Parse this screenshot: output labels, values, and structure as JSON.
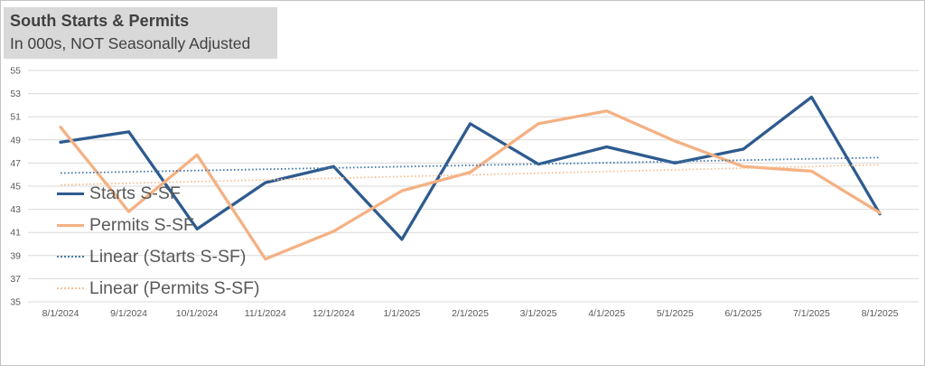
{
  "header": {
    "title": "South Starts & Permits",
    "subtitle": "In 000s, NOT Seasonally Adjusted"
  },
  "chart_data": {
    "type": "line",
    "title": "South Starts & Permits",
    "subtitle": "In 000s, NOT Seasonally Adjusted",
    "x": [
      "8/1/2024",
      "9/1/2024",
      "10/1/2024",
      "11/1/2024",
      "12/1/2024",
      "1/1/2025",
      "2/1/2025",
      "3/1/2025",
      "4/1/2025",
      "5/1/2025",
      "6/1/2025",
      "7/1/2025",
      "8/1/2025"
    ],
    "series": [
      {
        "name": "Starts S-SF",
        "style": "solid",
        "color": "#2e5b8f",
        "values": [
          48.8,
          49.7,
          41.3,
          45.3,
          46.7,
          40.4,
          50.4,
          46.9,
          48.4,
          47.0,
          48.2,
          52.7,
          42.6
        ]
      },
      {
        "name": "Permits S-SF",
        "style": "solid",
        "color": "#f4b183",
        "values": [
          50.1,
          42.8,
          47.7,
          38.7,
          41.1,
          44.6,
          46.2,
          50.4,
          51.5,
          48.9,
          46.7,
          46.3,
          42.7
        ]
      },
      {
        "name": "Linear (Starts S-SF)",
        "style": "dotted",
        "color": "#4678ac",
        "trend_of": 0
      },
      {
        "name": "Linear (Permits S-SF)",
        "style": "dotted",
        "color": "#f6c096",
        "trend_of": 1
      }
    ],
    "ylim": [
      35,
      55
    ],
    "ytick_step": 2,
    "ytick_labels": [
      "35",
      "37",
      "39",
      "41",
      "43",
      "45",
      "47",
      "49",
      "51",
      "53",
      "55"
    ],
    "grid": "horizontal",
    "legend_position": "inside-left"
  },
  "colors": {
    "gridline": "#d9d9d9",
    "axis_text": "#595959",
    "legend_text": "#595959",
    "title_text": "#404040",
    "title_background": "#d9d9d9",
    "frame_border": "#c4c4c4",
    "background": "#ffffff"
  }
}
